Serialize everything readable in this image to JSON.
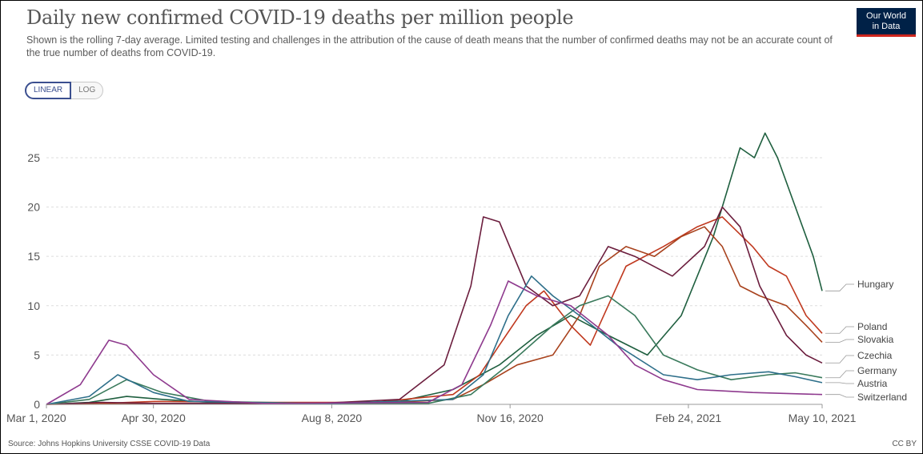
{
  "header": {
    "title": "Daily new confirmed COVID-19 deaths per million people",
    "subtitle": "Shown is the rolling 7-day average. Limited testing and challenges in the attribution of the cause of death means that the number of confirmed deaths may not be an accurate count of the true number of deaths from COVID-19.",
    "logo_line1": "Our World",
    "logo_line2": "in Data"
  },
  "controls": {
    "linear_label": "LINEAR",
    "log_label": "LOG",
    "selected": "LINEAR"
  },
  "footer": {
    "source": "Source: Johns Hopkins University CSSE COVID-19 Data",
    "license": "CC BY"
  },
  "colors": {
    "grid": "#dddddd",
    "axis": "#999999",
    "label": "#555555"
  },
  "chart_data": {
    "type": "line",
    "title": "Daily new confirmed COVID-19 deaths per million people",
    "scale": "linear",
    "grid": true,
    "legend_placement": "right, end of lines",
    "x_start": "2020-03-01",
    "x_end": "2021-05-10",
    "x_ticks": [
      {
        "label": "Mar 1, 2020",
        "date": "2020-03-01"
      },
      {
        "label": "Apr 30, 2020",
        "date": "2020-04-30"
      },
      {
        "label": "Aug 8, 2020",
        "date": "2020-08-08"
      },
      {
        "label": "Nov 16, 2020",
        "date": "2020-11-16"
      },
      {
        "label": "Feb 24, 2021",
        "date": "2021-02-24"
      },
      {
        "label": "May 10, 2021",
        "date": "2021-05-10"
      }
    ],
    "y_ticks": [
      0,
      5,
      10,
      15,
      20,
      25
    ],
    "ylim": [
      0,
      28
    ],
    "series": [
      {
        "name": "Hungary",
        "color": "#1f5f3f",
        "label_value": 11.5,
        "points": [
          [
            "2020-03-01",
            0
          ],
          [
            "2020-03-25",
            0.2
          ],
          [
            "2020-04-15",
            0.8
          ],
          [
            "2020-05-05",
            0.5
          ],
          [
            "2020-06-01",
            0.2
          ],
          [
            "2020-08-01",
            0.1
          ],
          [
            "2020-09-15",
            0.3
          ],
          [
            "2020-10-15",
            1.5
          ],
          [
            "2020-11-10",
            4
          ],
          [
            "2020-12-01",
            7
          ],
          [
            "2020-12-20",
            9
          ],
          [
            "2021-01-10",
            7
          ],
          [
            "2021-02-01",
            5
          ],
          [
            "2021-02-20",
            9
          ],
          [
            "2021-03-10",
            17
          ],
          [
            "2021-03-25",
            26
          ],
          [
            "2021-04-02",
            25
          ],
          [
            "2021-04-08",
            27.5
          ],
          [
            "2021-04-15",
            25
          ],
          [
            "2021-04-25",
            20
          ],
          [
            "2021-05-05",
            15
          ],
          [
            "2021-05-10",
            11.5
          ]
        ]
      },
      {
        "name": "Poland",
        "color": "#c0391f",
        "label_value": 7.2,
        "points": [
          [
            "2020-03-01",
            0
          ],
          [
            "2020-04-01",
            0.1
          ],
          [
            "2020-05-01",
            0.3
          ],
          [
            "2020-07-01",
            0.2
          ],
          [
            "2020-09-01",
            0.2
          ],
          [
            "2020-10-15",
            1
          ],
          [
            "2020-10-30",
            3
          ],
          [
            "2020-11-10",
            6
          ],
          [
            "2020-11-25",
            10
          ],
          [
            "2020-12-05",
            11.5
          ],
          [
            "2020-12-20",
            8
          ],
          [
            "2020-12-31",
            6
          ],
          [
            "2021-01-20",
            14
          ],
          [
            "2021-02-10",
            16
          ],
          [
            "2021-03-01",
            18
          ],
          [
            "2021-03-15",
            19
          ],
          [
            "2021-04-01",
            16
          ],
          [
            "2021-04-10",
            14
          ],
          [
            "2021-04-20",
            13
          ],
          [
            "2021-05-01",
            9
          ],
          [
            "2021-05-10",
            7.2
          ]
        ]
      },
      {
        "name": "Slovakia",
        "color": "#a8421d",
        "label_value": 6.3,
        "points": [
          [
            "2020-03-01",
            0
          ],
          [
            "2020-05-01",
            0.05
          ],
          [
            "2020-09-01",
            0.1
          ],
          [
            "2020-10-15",
            0.5
          ],
          [
            "2020-11-01",
            2
          ],
          [
            "2020-11-20",
            4
          ],
          [
            "2020-12-10",
            5
          ],
          [
            "2020-12-25",
            9
          ],
          [
            "2021-01-05",
            14
          ],
          [
            "2021-01-20",
            16
          ],
          [
            "2021-02-05",
            15
          ],
          [
            "2021-02-20",
            17
          ],
          [
            "2021-03-05",
            18
          ],
          [
            "2021-03-15",
            16
          ],
          [
            "2021-03-25",
            12
          ],
          [
            "2021-04-05",
            11
          ],
          [
            "2021-04-20",
            10
          ],
          [
            "2021-05-01",
            8
          ],
          [
            "2021-05-10",
            6.3
          ]
        ]
      },
      {
        "name": "Czechia",
        "color": "#6b1d3d",
        "label_value": 4.2,
        "points": [
          [
            "2020-03-01",
            0
          ],
          [
            "2020-04-01",
            0.2
          ],
          [
            "2020-05-01",
            0.1
          ],
          [
            "2020-08-01",
            0.1
          ],
          [
            "2020-09-15",
            0.5
          ],
          [
            "2020-10-10",
            4
          ],
          [
            "2020-10-25",
            12
          ],
          [
            "2020-11-01",
            19
          ],
          [
            "2020-11-10",
            18.5
          ],
          [
            "2020-11-25",
            12
          ],
          [
            "2020-12-10",
            10
          ],
          [
            "2020-12-25",
            11
          ],
          [
            "2021-01-10",
            16
          ],
          [
            "2021-01-25",
            15
          ],
          [
            "2021-02-15",
            13
          ],
          [
            "2021-03-05",
            16
          ],
          [
            "2021-03-15",
            20
          ],
          [
            "2021-03-25",
            18
          ],
          [
            "2021-04-05",
            12
          ],
          [
            "2021-04-20",
            7
          ],
          [
            "2021-05-01",
            5
          ],
          [
            "2021-05-10",
            4.2
          ]
        ]
      },
      {
        "name": "Germany",
        "color": "#3a7a5c",
        "label_value": 2.7,
        "points": [
          [
            "2020-03-01",
            0
          ],
          [
            "2020-03-25",
            0.5
          ],
          [
            "2020-04-15",
            2.5
          ],
          [
            "2020-05-05",
            1.2
          ],
          [
            "2020-06-01",
            0.3
          ],
          [
            "2020-08-01",
            0.1
          ],
          [
            "2020-10-01",
            0.1
          ],
          [
            "2020-10-25",
            1
          ],
          [
            "2020-11-15",
            4
          ],
          [
            "2020-12-10",
            8
          ],
          [
            "2020-12-25",
            10
          ],
          [
            "2021-01-10",
            11
          ],
          [
            "2021-01-25",
            9
          ],
          [
            "2021-02-10",
            5
          ],
          [
            "2021-03-01",
            3.5
          ],
          [
            "2021-03-20",
            2.5
          ],
          [
            "2021-04-10",
            3
          ],
          [
            "2021-04-25",
            3.2
          ],
          [
            "2021-05-10",
            2.7
          ]
        ]
      },
      {
        "name": "Austria",
        "color": "#2e6f8a",
        "label_value": 2.2,
        "points": [
          [
            "2020-03-01",
            0
          ],
          [
            "2020-03-25",
            0.8
          ],
          [
            "2020-04-10",
            3
          ],
          [
            "2020-04-30",
            1.2
          ],
          [
            "2020-05-20",
            0.3
          ],
          [
            "2020-08-01",
            0.05
          ],
          [
            "2020-10-15",
            0.5
          ],
          [
            "2020-11-01",
            3
          ],
          [
            "2020-11-15",
            9
          ],
          [
            "2020-11-28",
            13
          ],
          [
            "2020-12-10",
            11
          ],
          [
            "2020-12-25",
            9
          ],
          [
            "2021-01-15",
            6
          ],
          [
            "2021-02-10",
            3
          ],
          [
            "2021-03-01",
            2.5
          ],
          [
            "2021-03-20",
            3
          ],
          [
            "2021-04-10",
            3.3
          ],
          [
            "2021-04-25",
            2.8
          ],
          [
            "2021-05-10",
            2.2
          ]
        ]
      },
      {
        "name": "Switzerland",
        "color": "#8e3a8e",
        "label_value": 1,
        "points": [
          [
            "2020-03-01",
            0
          ],
          [
            "2020-03-20",
            2
          ],
          [
            "2020-04-05",
            6.5
          ],
          [
            "2020-04-15",
            6
          ],
          [
            "2020-04-30",
            3
          ],
          [
            "2020-05-20",
            0.5
          ],
          [
            "2020-07-01",
            0.1
          ],
          [
            "2020-10-01",
            0.2
          ],
          [
            "2020-10-20",
            2
          ],
          [
            "2020-11-05",
            8
          ],
          [
            "2020-11-15",
            12.5
          ],
          [
            "2020-12-01",
            11
          ],
          [
            "2020-12-20",
            10
          ],
          [
            "2021-01-10",
            7
          ],
          [
            "2021-01-25",
            4
          ],
          [
            "2021-02-10",
            2.5
          ],
          [
            "2021-03-01",
            1.5
          ],
          [
            "2021-04-01",
            1.2
          ],
          [
            "2021-05-10",
            1
          ]
        ]
      }
    ]
  }
}
